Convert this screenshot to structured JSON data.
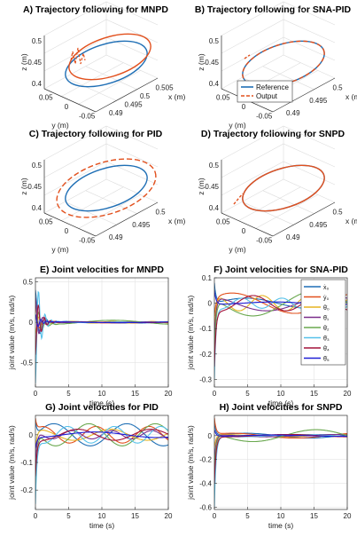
{
  "colors": {
    "reference": "#1f6fb5",
    "output": "#e2501d",
    "joints": [
      "#1f6fb5",
      "#e2501d",
      "#e6b320",
      "#7b2d8b",
      "#6aa84f",
      "#56c1ea",
      "#a3123a",
      "#1f1fd6"
    ]
  },
  "legend3d": {
    "reference": "Reference",
    "output": "Output"
  },
  "jointLegend": [
    "ẋ₀",
    "ẏ₀",
    "θ̇₀",
    "θ̇₁",
    "θ̇₂",
    "θ̇₃",
    "θ̇₄",
    "θ̇₅"
  ],
  "chart_data": [
    {
      "type": "line",
      "panel": "A",
      "title": "A) Trajectory following for MNPD",
      "xlabel": "x (m)",
      "ylabel": "y (m)",
      "zlabel": "z (m)",
      "zticks": [
        "0.5",
        "0.45",
        "0.4"
      ],
      "yticks": [
        "0.05",
        "0",
        "-0.05"
      ],
      "xticks": [
        "0.505",
        "0.5",
        "0.495",
        "0.49"
      ],
      "series": [
        {
          "name": "Reference",
          "shape": "ellipse",
          "center": [
            0.5,
            0.0,
            0.45
          ],
          "radius": 0.05
        },
        {
          "name": "Output",
          "shape": "ellipse-transient",
          "center": [
            0.5,
            0.0,
            0.47
          ],
          "radius": 0.05
        }
      ]
    },
    {
      "type": "line",
      "panel": "B",
      "title": "B) Trajectory following for SNA-PID",
      "xlabel": "x (m)",
      "ylabel": "y (m)",
      "zlabel": "z (m)",
      "zticks": [
        "0.5",
        "0.45",
        "0.4"
      ],
      "yticks": [
        "0.05",
        "0",
        "-0.05"
      ],
      "xticks": [
        "0.5",
        "0.495",
        "0.49"
      ],
      "legend": [
        "Reference",
        "Output"
      ],
      "series": [
        {
          "name": "Reference",
          "shape": "ellipse",
          "center": [
            0.495,
            0.0,
            0.45
          ],
          "radius": 0.05
        },
        {
          "name": "Output",
          "shape": "ellipse-dashed",
          "center": [
            0.495,
            0.0,
            0.45
          ],
          "radius": 0.05
        }
      ]
    },
    {
      "type": "line",
      "panel": "C",
      "title": "C) Trajectory following for PID",
      "xlabel": "x (m)",
      "ylabel": "y (m)",
      "zlabel": "z (m)",
      "zticks": [
        "0.5",
        "0.45",
        "0.4"
      ],
      "yticks": [
        "0.05",
        "0",
        "-0.05"
      ],
      "xticks": [
        "0.5",
        "0.495",
        "0.49"
      ],
      "series": [
        {
          "name": "Reference",
          "shape": "ellipse",
          "center": [
            0.495,
            0.0,
            0.45
          ],
          "radius": 0.05
        },
        {
          "name": "Output",
          "shape": "ellipse-offset",
          "center": [
            0.495,
            0.0,
            0.45
          ],
          "radius": 0.06
        }
      ]
    },
    {
      "type": "line",
      "panel": "D",
      "title": "D) Trajectory following for SNPD",
      "xlabel": "x (m)",
      "ylabel": "y (m)",
      "zlabel": "z (m)",
      "zticks": [
        "0.5",
        "0.45",
        "0.4"
      ],
      "yticks": [
        "0.05",
        "0",
        "-0.05"
      ],
      "xticks": [
        "0.5",
        "0.495",
        "0.49"
      ],
      "series": [
        {
          "name": "Reference",
          "shape": "ellipse",
          "center": [
            0.495,
            0.0,
            0.45
          ],
          "radius": 0.05
        },
        {
          "name": "Output",
          "shape": "ellipse-overlap",
          "center": [
            0.495,
            0.0,
            0.45
          ],
          "radius": 0.05
        }
      ]
    },
    {
      "type": "line",
      "panel": "E",
      "title": "E) Joint velocities for MNPD",
      "xlabel": "time (s)",
      "ylabel": "joint value (m/s, rad/s)",
      "xlim": [
        0,
        20
      ],
      "ylim": [
        -0.8,
        0.55
      ],
      "xticks": [
        0,
        5,
        10,
        15,
        20
      ],
      "yticks": [
        -0.5,
        0,
        0.5
      ],
      "damping": "strong-oscillation",
      "series": [
        {
          "index": 0,
          "initial": 0.4,
          "amplitude": 0.01,
          "period": 19
        },
        {
          "index": 1,
          "initial": 0.2,
          "amplitude": 0.008,
          "period": 19
        },
        {
          "index": 2,
          "initial": -0.15,
          "amplitude": 0.01,
          "period": 6
        },
        {
          "index": 3,
          "initial": 0.3,
          "amplitude": 0.005,
          "period": 19
        },
        {
          "index": 4,
          "initial": -0.3,
          "amplitude": 0.025,
          "period": 19
        },
        {
          "index": 5,
          "initial": -0.75,
          "amplitude": 0.005,
          "period": 8
        },
        {
          "index": 6,
          "initial": -0.4,
          "amplitude": 0.005,
          "period": 19
        },
        {
          "index": 7,
          "initial": 0.1,
          "amplitude": 0.005,
          "period": 19
        }
      ]
    },
    {
      "type": "line",
      "panel": "F",
      "title": "F) Joint velocities for SNA-PID",
      "xlabel": "time (s)",
      "ylabel": "joint value (m/s, rad/s)",
      "xlim": [
        0,
        20
      ],
      "ylim": [
        -0.33,
        0.1
      ],
      "xticks": [
        0,
        5,
        10,
        15,
        20
      ],
      "yticks": [
        -0.3,
        -0.2,
        -0.1,
        0,
        0.1
      ],
      "series": [
        {
          "index": 0,
          "initial": 0.08,
          "amplitude": 0.02,
          "period": 19
        },
        {
          "index": 1,
          "initial": -0.05,
          "amplitude": 0.04,
          "period": 19
        },
        {
          "index": 2,
          "initial": -0.1,
          "amplitude": 0.03,
          "period": 7
        },
        {
          "index": 3,
          "initial": -0.15,
          "amplitude": 0.03,
          "period": 19
        },
        {
          "index": 4,
          "initial": -0.2,
          "amplitude": 0.05,
          "period": 19
        },
        {
          "index": 5,
          "initial": -0.3,
          "amplitude": 0.02,
          "period": 6
        },
        {
          "index": 6,
          "initial": -0.25,
          "amplitude": 0.03,
          "period": 10
        },
        {
          "index": 7,
          "initial": 0.05,
          "amplitude": 0.005,
          "period": 19
        }
      ]
    },
    {
      "type": "line",
      "panel": "G",
      "title": "G) Joint velocities for PID",
      "xlabel": "time (s)",
      "ylabel": "joint value (m/s, rad/s)",
      "xlim": [
        0,
        20
      ],
      "ylim": [
        -0.27,
        0.07
      ],
      "xticks": [
        0,
        5,
        10,
        15,
        20
      ],
      "yticks": [
        -0.2,
        -0.1,
        0
      ],
      "series": [
        {
          "index": 0,
          "initial": 0.05,
          "amplitude": 0.04,
          "period": 11
        },
        {
          "index": 1,
          "initial": 0.06,
          "amplitude": 0.03,
          "period": 8
        },
        {
          "index": 2,
          "initial": -0.05,
          "amplitude": 0.02,
          "period": 11
        },
        {
          "index": 3,
          "initial": -0.1,
          "amplitude": 0.015,
          "period": 6
        },
        {
          "index": 4,
          "initial": -0.18,
          "amplitude": 0.04,
          "period": 10
        },
        {
          "index": 5,
          "initial": -0.25,
          "amplitude": 0.03,
          "period": 7
        },
        {
          "index": 6,
          "initial": -0.15,
          "amplitude": 0.02,
          "period": 11
        },
        {
          "index": 7,
          "initial": -0.05,
          "amplitude": 0.01,
          "period": 19
        }
      ]
    },
    {
      "type": "line",
      "panel": "H",
      "title": "H) Joint velocities for SNPD",
      "xlabel": "time (s)",
      "ylabel": "joint value (m/s, rad/s)",
      "xlim": [
        0,
        20
      ],
      "ylim": [
        -0.62,
        0.17
      ],
      "xticks": [
        0,
        5,
        10,
        15,
        20
      ],
      "yticks": [
        -0.6,
        -0.4,
        -0.2,
        0
      ],
      "series": [
        {
          "index": 0,
          "initial": 0.1,
          "amplitude": 0.02,
          "period": 19
        },
        {
          "index": 1,
          "initial": 0.15,
          "amplitude": 0.02,
          "period": 19
        },
        {
          "index": 2,
          "initial": -0.1,
          "amplitude": 0.01,
          "period": 19
        },
        {
          "index": 3,
          "initial": -0.2,
          "amplitude": 0.01,
          "period": 19
        },
        {
          "index": 4,
          "initial": -0.3,
          "amplitude": 0.05,
          "period": 19
        },
        {
          "index": 5,
          "initial": -0.6,
          "amplitude": 0.01,
          "period": 19
        },
        {
          "index": 6,
          "initial": -0.4,
          "amplitude": 0.01,
          "period": 19
        },
        {
          "index": 7,
          "initial": 0.05,
          "amplitude": 0.005,
          "period": 19
        }
      ]
    }
  ]
}
